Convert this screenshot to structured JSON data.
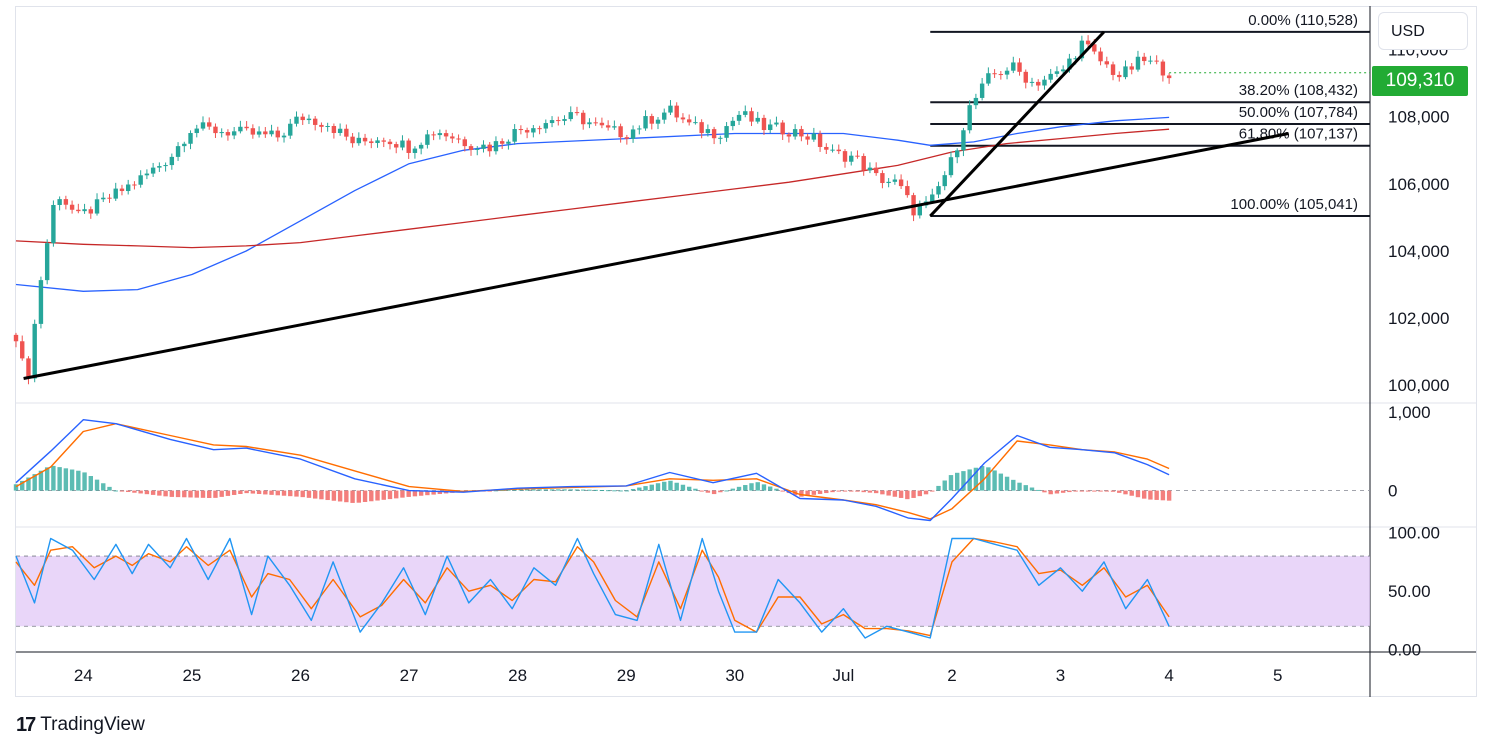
{
  "currency": "USD",
  "brand": {
    "logo_glyph": "17",
    "name": "TradingView"
  },
  "last_price": {
    "label": "109,310",
    "value": 109310,
    "color": "#22ab34"
  },
  "colors": {
    "up": "#26a69a",
    "down": "#ef5350",
    "ma_fast": "#2962ff",
    "ma_slow": "#c62828",
    "macd": "#2962ff",
    "signal": "#ff6d00",
    "stoch_k": "#2196f3",
    "stoch_d": "#ff6d00",
    "stoch_band": "#e1c8f7",
    "trendline": "#000000"
  },
  "chart_data": [
    {
      "type": "candlestick",
      "title": "",
      "price_axis": {
        "ticks": [
          100000,
          102000,
          104000,
          106000,
          108000,
          110000
        ],
        "tick_labels": [
          "100,000",
          "102,000",
          "104,000",
          "106,000",
          "108,000",
          "110,000"
        ],
        "range": [
          99500,
          111300
        ]
      },
      "time_axis": {
        "x": [
          0,
          1,
          2,
          3,
          4,
          5,
          6,
          7,
          8,
          9,
          10
        ],
        "labels": [
          "24",
          "25",
          "26",
          "27",
          "28",
          "29",
          "30",
          "Jul",
          "2",
          "3",
          "4",
          "5"
        ],
        "label_x": [
          0,
          1,
          2,
          3,
          4,
          5,
          6,
          7,
          8,
          9,
          10,
          11
        ],
        "range": [
          -0.62,
          11.85
        ],
        "data_end": 10.0
      },
      "candles_anchors": [
        [
          -0.62,
          101500
        ],
        [
          -0.52,
          100000
        ],
        [
          -0.4,
          103000
        ],
        [
          -0.25,
          105800
        ],
        [
          -0.05,
          105000
        ],
        [
          0.3,
          105700
        ],
        [
          0.55,
          106200
        ],
        [
          0.8,
          106800
        ],
        [
          1.0,
          107700
        ],
        [
          1.2,
          107600
        ],
        [
          1.5,
          107500
        ],
        [
          1.8,
          107400
        ],
        [
          2.0,
          108000
        ],
        [
          2.25,
          107800
        ],
        [
          2.5,
          107200
        ],
        [
          2.75,
          107400
        ],
        [
          3.0,
          107100
        ],
        [
          3.25,
          107600
        ],
        [
          3.55,
          107200
        ],
        [
          3.75,
          107100
        ],
        [
          4.0,
          107600
        ],
        [
          4.3,
          107900
        ],
        [
          4.55,
          108000
        ],
        [
          4.8,
          107600
        ],
        [
          5.0,
          107500
        ],
        [
          5.2,
          107900
        ],
        [
          5.4,
          108200
        ],
        [
          5.6,
          107700
        ],
        [
          5.85,
          107500
        ],
        [
          6.05,
          108100
        ],
        [
          6.25,
          107700
        ],
        [
          6.5,
          107600
        ],
        [
          6.7,
          107400
        ],
        [
          6.9,
          106900
        ],
        [
          7.1,
          106800
        ],
        [
          7.3,
          106200
        ],
        [
          7.5,
          106000
        ],
        [
          7.65,
          105200
        ],
        [
          7.8,
          105400
        ],
        [
          8.0,
          106700
        ],
        [
          8.15,
          108200
        ],
        [
          8.35,
          109200
        ],
        [
          8.55,
          109500
        ],
        [
          8.75,
          109000
        ],
        [
          9.0,
          109300
        ],
        [
          9.2,
          110200
        ],
        [
          9.35,
          109700
        ],
        [
          9.55,
          109200
        ],
        [
          9.75,
          109700
        ],
        [
          9.9,
          109500
        ],
        [
          10.0,
          109310
        ]
      ],
      "series": [
        {
          "name": "MA fast",
          "color": "#2962ff",
          "x": [
            -0.62,
            0,
            0.5,
            1,
            1.5,
            2,
            2.5,
            3,
            3.5,
            4,
            5,
            6,
            7,
            7.5,
            7.8,
            8.2,
            8.6,
            9,
            9.5,
            10
          ],
          "y": [
            103000,
            102800,
            102850,
            103300,
            104000,
            104900,
            105800,
            106600,
            107000,
            107200,
            107350,
            107500,
            107500,
            107300,
            107150,
            107250,
            107500,
            107700,
            107880,
            107980
          ]
        },
        {
          "name": "MA slow",
          "color": "#c62828",
          "x": [
            -0.62,
            0,
            0.5,
            1,
            1.5,
            2,
            2.5,
            3,
            3.5,
            4,
            4.5,
            5,
            5.5,
            6,
            6.5,
            7,
            7.5,
            8,
            8.5,
            9,
            9.5,
            10
          ],
          "y": [
            104300,
            104200,
            104150,
            104100,
            104150,
            104250,
            104450,
            104650,
            104850,
            105050,
            105250,
            105450,
            105650,
            105850,
            106050,
            106300,
            106550,
            106950,
            107200,
            107350,
            107500,
            107630
          ]
        }
      ],
      "trendlines": [
        {
          "x": [
            -0.55,
            11.1
          ],
          "y": [
            100200,
            107500
          ]
        },
        {
          "x": [
            7.8,
            9.4
          ],
          "y": [
            105041,
            110528
          ]
        }
      ],
      "fibonacci": {
        "x_start": 7.8,
        "x_end": 11.85,
        "levels": [
          {
            "label": "0.00% (110,528)",
            "value": 110528
          },
          {
            "label": "38.20% (108,432)",
            "value": 108432
          },
          {
            "label": "50.00% (107,784)",
            "value": 107784
          },
          {
            "label": "61.80% (107,137)",
            "value": 107137
          },
          {
            "label": "100.00% (105,041)",
            "value": 105041
          }
        ]
      }
    },
    {
      "type": "macd",
      "axis": {
        "ticks": [
          1000,
          0
        ],
        "tick_labels": [
          "1,000",
          "0"
        ],
        "range": [
          -450,
          1100
        ]
      },
      "series": [
        {
          "name": "MACD",
          "color": "#2962ff",
          "x": [
            -0.62,
            -0.3,
            0.0,
            0.3,
            0.8,
            1.2,
            1.5,
            2.0,
            2.5,
            3.0,
            3.5,
            4.0,
            4.5,
            5.0,
            5.4,
            5.8,
            6.2,
            6.6,
            7.0,
            7.3,
            7.6,
            7.8,
            8.0,
            8.3,
            8.6,
            8.9,
            9.2,
            9.5,
            9.8,
            10.0
          ],
          "y": [
            100,
            500,
            900,
            850,
            650,
            520,
            540,
            400,
            150,
            0,
            -20,
            30,
            50,
            60,
            230,
            100,
            220,
            -100,
            -120,
            -200,
            -350,
            -380,
            -100,
            350,
            700,
            550,
            520,
            480,
            330,
            200
          ]
        },
        {
          "name": "Signal",
          "color": "#ff6d00",
          "x": [
            -0.62,
            -0.3,
            0.0,
            0.3,
            0.8,
            1.2,
            1.5,
            2.0,
            2.5,
            3.0,
            3.5,
            4.0,
            4.5,
            5.0,
            5.4,
            5.8,
            6.2,
            6.6,
            7.0,
            7.3,
            7.6,
            7.8,
            8.0,
            8.3,
            8.6,
            8.9,
            9.2,
            9.5,
            9.8,
            10.0
          ],
          "y": [
            50,
            300,
            750,
            850,
            700,
            580,
            560,
            450,
            250,
            50,
            -10,
            20,
            40,
            60,
            150,
            130,
            150,
            -50,
            -120,
            -180,
            -280,
            -360,
            -230,
            150,
            630,
            580,
            520,
            490,
            400,
            280
          ]
        }
      ]
    },
    {
      "type": "stochastic",
      "axis": {
        "ticks": [
          100,
          50,
          0
        ],
        "tick_labels": [
          "100.00",
          "50.00",
          "0.00"
        ],
        "range": [
          -2,
          104
        ],
        "band": [
          20,
          80
        ]
      },
      "series": [
        {
          "name": "%K",
          "color": "#2196f3",
          "x": [
            -0.62,
            -0.45,
            -0.3,
            -0.1,
            0.1,
            0.3,
            0.45,
            0.6,
            0.8,
            0.95,
            1.15,
            1.35,
            1.55,
            1.7,
            1.9,
            2.1,
            2.3,
            2.55,
            2.75,
            2.95,
            3.15,
            3.35,
            3.55,
            3.75,
            3.95,
            4.15,
            4.35,
            4.55,
            4.7,
            4.9,
            5.1,
            5.3,
            5.5,
            5.7,
            5.85,
            6.0,
            6.2,
            6.4,
            6.6,
            6.8,
            7.0,
            7.2,
            7.4,
            7.6,
            7.8,
            8.0,
            8.2,
            8.4,
            8.6,
            8.8,
            9.0,
            9.2,
            9.4,
            9.6,
            9.8,
            10.0
          ],
          "y": [
            80,
            40,
            95,
            85,
            60,
            90,
            65,
            90,
            70,
            95,
            60,
            95,
            30,
            80,
            55,
            25,
            75,
            15,
            40,
            70,
            30,
            80,
            40,
            60,
            35,
            70,
            55,
            95,
            65,
            30,
            25,
            90,
            25,
            95,
            50,
            15,
            15,
            60,
            40,
            15,
            35,
            10,
            20,
            15,
            10,
            95,
            95,
            90,
            85,
            55,
            70,
            50,
            75,
            35,
            60,
            20
          ]
        },
        {
          "name": "%D",
          "color": "#ff6d00",
          "x": [
            -0.62,
            -0.45,
            -0.3,
            -0.1,
            0.1,
            0.3,
            0.45,
            0.6,
            0.8,
            0.95,
            1.15,
            1.35,
            1.55,
            1.7,
            1.9,
            2.1,
            2.3,
            2.55,
            2.75,
            2.95,
            3.15,
            3.35,
            3.55,
            3.75,
            3.95,
            4.15,
            4.35,
            4.55,
            4.7,
            4.9,
            5.1,
            5.3,
            5.5,
            5.7,
            5.85,
            6.0,
            6.2,
            6.4,
            6.6,
            6.8,
            7.0,
            7.2,
            7.4,
            7.6,
            7.8,
            8.0,
            8.2,
            8.4,
            8.6,
            8.8,
            9.0,
            9.2,
            9.4,
            9.6,
            9.8,
            10.0
          ],
          "y": [
            75,
            55,
            85,
            88,
            70,
            80,
            72,
            82,
            75,
            88,
            72,
            85,
            45,
            65,
            60,
            35,
            60,
            28,
            38,
            60,
            40,
            70,
            50,
            55,
            42,
            60,
            58,
            88,
            75,
            42,
            28,
            75,
            35,
            85,
            62,
            25,
            15,
            45,
            45,
            22,
            30,
            18,
            18,
            16,
            12,
            75,
            95,
            92,
            88,
            65,
            68,
            55,
            70,
            45,
            55,
            28
          ]
        }
      ]
    }
  ]
}
